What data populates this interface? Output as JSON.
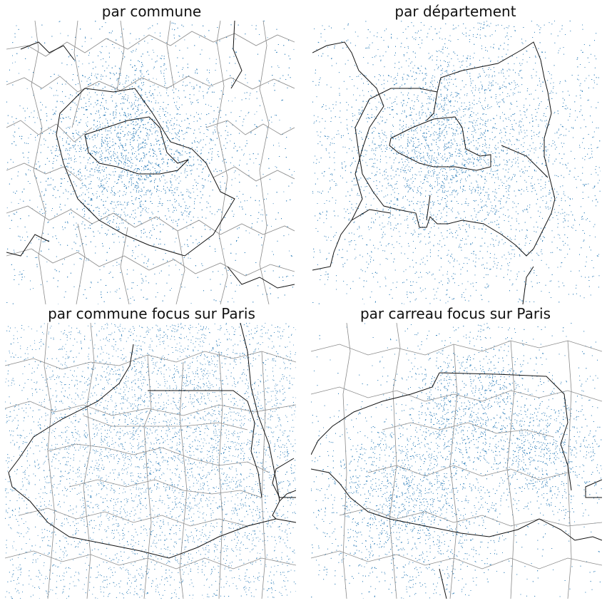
{
  "figure": {
    "panels": [
      {
        "id": "commune",
        "title": "par commune",
        "description": "Dot-density map of communes around Paris, shaded by commune",
        "dot_color": "#2f7fba"
      },
      {
        "id": "departement",
        "title": "par département",
        "description": "Dot-density map by département around Paris",
        "dot_color": "#2f7fba"
      },
      {
        "id": "commune-paris",
        "title": "par commune focus sur Paris",
        "description": "Dot-density map of Paris arrondissements (commune level)",
        "dot_color": "#2f7fba"
      },
      {
        "id": "carreau-paris",
        "title": "par carreau focus sur Paris",
        "description": "Dot-density map of Paris arrondissements (grid-cell level)",
        "dot_color": "#2f7fba"
      }
    ],
    "colors": {
      "dots": "#2f7fba",
      "outer_boundary": "#111111",
      "inner_boundary": "#8a8a8a"
    }
  }
}
